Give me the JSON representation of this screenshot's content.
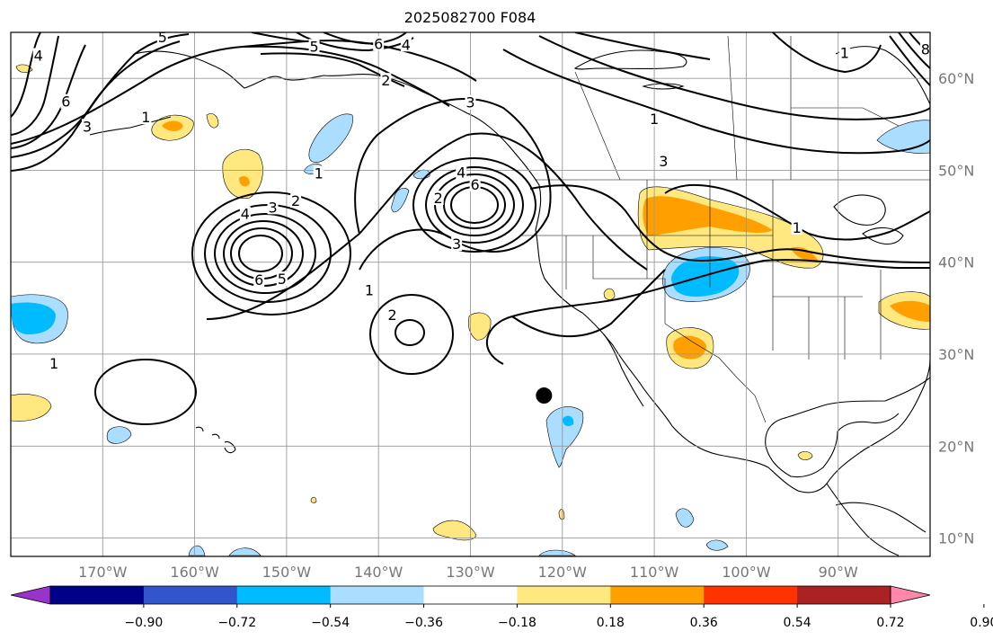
{
  "title": "2025082700 F084",
  "map": {
    "lon_range": [
      -180,
      -80
    ],
    "lat_range": [
      8,
      65
    ],
    "grid": true,
    "marker_label": "",
    "lon_ticks": [
      {
        "value": -170,
        "label": "170°W"
      },
      {
        "value": -160,
        "label": "160°W"
      },
      {
        "value": -150,
        "label": "150°W"
      },
      {
        "value": -140,
        "label": "140°W"
      },
      {
        "value": -130,
        "label": "130°W"
      },
      {
        "value": -120,
        "label": "120°W"
      },
      {
        "value": -110,
        "label": "110°W"
      },
      {
        "value": -100,
        "label": "100°W"
      },
      {
        "value": -90,
        "label": "90°W"
      }
    ],
    "lat_ticks": [
      {
        "value": 60,
        "label": "60°N"
      },
      {
        "value": 50,
        "label": "50°N"
      },
      {
        "value": 40,
        "label": "40°N"
      },
      {
        "value": 30,
        "label": "30°N"
      },
      {
        "value": 20,
        "label": "20°N"
      },
      {
        "value": 10,
        "label": "10°N"
      }
    ],
    "marker": {
      "lon": -122,
      "lat": 25.5
    },
    "contour_labels": [
      {
        "text": "5",
        "lon": -163.5,
        "lat": 64.5
      },
      {
        "text": "4",
        "lon": -177,
        "lat": 62.5
      },
      {
        "text": "6",
        "lon": -174,
        "lat": 57.5
      },
      {
        "text": "3",
        "lon": -171.7,
        "lat": 54.8
      },
      {
        "text": "1",
        "lon": -165.3,
        "lat": 55.8
      },
      {
        "text": "5",
        "lon": -147,
        "lat": 63.5
      },
      {
        "text": "6",
        "lon": -140,
        "lat": 63.8
      },
      {
        "text": "4",
        "lon": -137,
        "lat": 63.7
      },
      {
        "text": "2",
        "lon": -139.2,
        "lat": 59.8
      },
      {
        "text": "3",
        "lon": -130,
        "lat": 57.4
      },
      {
        "text": "1",
        "lon": -146.5,
        "lat": 49.7
      },
      {
        "text": "4",
        "lon": -154.5,
        "lat": 45.3
      },
      {
        "text": "3",
        "lon": -151.5,
        "lat": 46
      },
      {
        "text": "2",
        "lon": -149,
        "lat": 46.7
      },
      {
        "text": "6",
        "lon": -153,
        "lat": 38.1
      },
      {
        "text": "5",
        "lon": -150.5,
        "lat": 38.2
      },
      {
        "text": "4",
        "lon": -131,
        "lat": 49.8
      },
      {
        "text": "6",
        "lon": -129.5,
        "lat": 48.5
      },
      {
        "text": "2",
        "lon": -133.5,
        "lat": 47
      },
      {
        "text": "3",
        "lon": -131.5,
        "lat": 42
      },
      {
        "text": "1",
        "lon": -141,
        "lat": 37
      },
      {
        "text": "2",
        "lon": -138.5,
        "lat": 34.3
      },
      {
        "text": "1",
        "lon": -175.3,
        "lat": 29
      },
      {
        "text": "1",
        "lon": -110,
        "lat": 55.6
      },
      {
        "text": "3",
        "lon": -109,
        "lat": 51
      },
      {
        "text": "1",
        "lon": -89.3,
        "lat": 62.8
      },
      {
        "text": "1",
        "lon": -94.5,
        "lat": 43.8
      },
      {
        "text": "8",
        "lon": -80.5,
        "lat": 63.2
      }
    ]
  },
  "colorbar": {
    "colors": [
      "#9933cc",
      "#000088",
      "#3355cc",
      "#00bbff",
      "#aaddff",
      "#ffffff",
      "#ffe880",
      "#ffa000",
      "#ff3300",
      "#aa2222",
      "#ff88aa"
    ],
    "ticks": [
      "−0.90",
      "−0.72",
      "−0.54",
      "−0.36",
      "−0.18",
      "0.18",
      "0.36",
      "0.54",
      "0.72",
      "0.90"
    ]
  }
}
